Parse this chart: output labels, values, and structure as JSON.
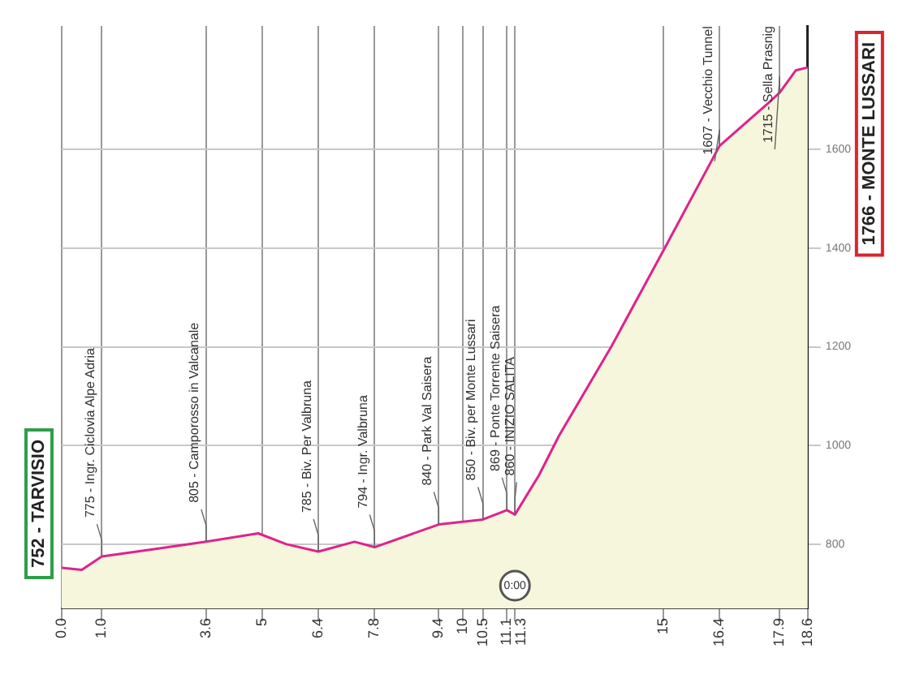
{
  "chart_data": {
    "type": "area",
    "x": [
      0,
      0.5,
      1.0,
      2.3,
      3.6,
      4.9,
      5.6,
      6.4,
      7.3,
      7.8,
      9.4,
      10.5,
      11.1,
      11.3,
      11.9,
      12.4,
      13.7,
      15.1,
      16.4,
      17.7,
      17.9,
      18.3,
      18.6
    ],
    "series": [
      {
        "color": "#e0228c",
        "values": [
          752,
          748,
          775,
          790,
          805,
          822,
          800,
          785,
          805,
          794,
          840,
          850,
          869,
          860,
          940,
          1020,
          1200,
          1410,
          1607,
          1700,
          1715,
          1760,
          1766
        ]
      }
    ],
    "xlim": [
      0,
      18.6
    ],
    "xticks": [
      {
        "value": 0,
        "label": "0.0"
      },
      {
        "value": 1,
        "label": "1.0"
      },
      {
        "value": 3.6,
        "label": "3.6"
      },
      5,
      {
        "value": 6.4,
        "label": "6.4"
      },
      {
        "value": 7.8,
        "label": "7.8"
      },
      {
        "value": 9.4,
        "label": "9.4"
      },
      10,
      {
        "value": 10.5,
        "label": "10.5"
      },
      {
        "value": 11.1,
        "label": "11.1"
      },
      {
        "value": 11.3,
        "label": "11.3"
      },
      15,
      {
        "value": 16.4,
        "label": "16.4"
      },
      {
        "value": 17.9,
        "label": "17.9"
      },
      {
        "value": 18.6,
        "label": "18.6"
      }
    ],
    "ylim": [
      670,
      1850
    ],
    "yticks": [
      800,
      1000,
      1200,
      1400,
      1600
    ],
    "grid": true,
    "annotations": [
      {
        "text": "752 - TARVISIO",
        "x": 0,
        "y": 752
      },
      {
        "text": "775 - Ingr. Ciclovia Alpe Adria",
        "x": 1.0,
        "y": 775
      },
      {
        "text": "805 - Camporosso in Valcanale",
        "x": 3.6,
        "y": 805
      },
      {
        "text": "785 - Biv. Per Valbruna",
        "x": 6.4,
        "y": 785
      },
      {
        "text": "794 - Ingr. Valbruna",
        "x": 7.8,
        "y": 794
      },
      {
        "text": "840 - Park Val Saisera",
        "x": 9.4,
        "y": 840
      },
      {
        "text": "850 - Biv. per Monte Lussari",
        "x": 10.5,
        "y": 850
      },
      {
        "text": "869 - Ponte Torrente Saisera",
        "x": 11.1,
        "y": 869
      },
      {
        "text": "860 - INIZIO SALITA",
        "x": 11.3,
        "y": 860
      },
      {
        "text": "1607 - Vecchio Tunnel",
        "x": 16.4,
        "y": 1607
      },
      {
        "text": "1715 - Sella Prasnig",
        "x": 17.9,
        "y": 1715
      },
      {
        "text": "1766 - MONTE LUSSARI",
        "x": 18.6,
        "y": 1766
      },
      {
        "text": "0:00",
        "x": 11.3
      }
    ]
  }
}
